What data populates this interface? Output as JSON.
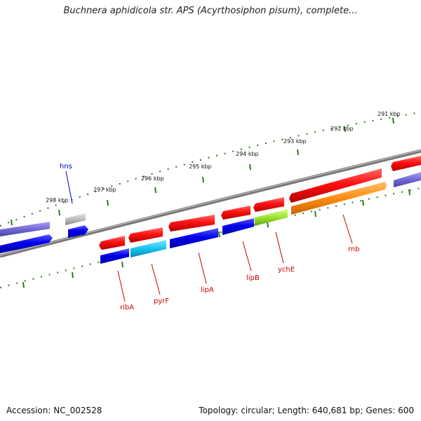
{
  "title": "Buchnera aphidicola str. APS (Acyrthosiphon pisum), complete...",
  "footer": {
    "accession": "Accession: NC_002528",
    "summary": "Topology: circular; Length: 640,681 bp; Genes: 600"
  },
  "colors": {
    "tick": "#2a7a1a",
    "backbone": "#777777",
    "gene_label": "#cc0000",
    "hns_label": "#0000cc"
  },
  "kbp_labels": [
    "291 kbp",
    "292 kbp",
    "293 kbp",
    "294 kbp",
    "295 kbp",
    "296 kbp",
    "297 kbp",
    "298 kbp"
  ],
  "gene_labels": [
    "hns",
    "ribA",
    "pyrF",
    "lipA",
    "lipB",
    "ychE",
    "rnb"
  ]
}
